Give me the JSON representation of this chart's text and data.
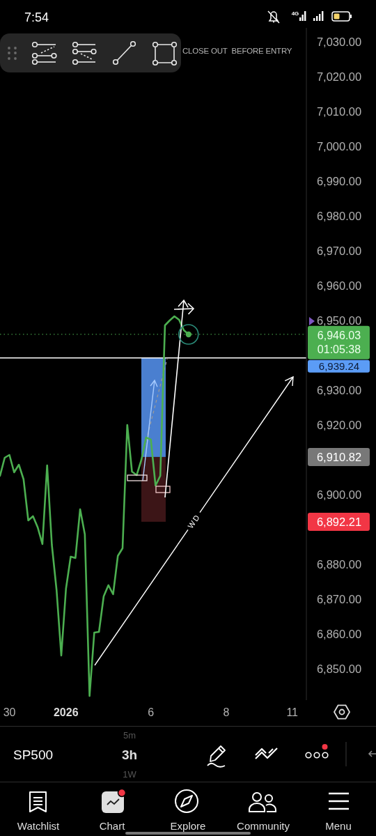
{
  "chart_data": {
    "type": "line",
    "title": "SP500",
    "categories": [
      null,
      null,
      "30",
      null,
      null,
      null,
      null,
      null,
      null,
      null,
      null,
      null,
      null,
      null,
      "2026",
      null,
      null,
      null,
      null,
      null,
      null,
      null,
      null,
      null,
      null,
      null,
      null,
      null,
      null,
      null,
      null,
      null,
      "6",
      null,
      null,
      null,
      null,
      null,
      null,
      null,
      null,
      null,
      null,
      null,
      null,
      null,
      null,
      null,
      "8",
      null,
      null,
      null,
      null,
      null,
      null,
      null,
      null,
      null,
      null,
      null,
      null,
      null,
      "11",
      null,
      null,
      null
    ],
    "ylim": [
      6841,
      7034
    ],
    "yticks": [
      {
        "value": 7030,
        "label": "7,030.00"
      },
      {
        "value": 7020,
        "label": "7,020.00"
      },
      {
        "value": 7010,
        "label": "7,010.00"
      },
      {
        "value": 7000,
        "label": "7,000.00"
      },
      {
        "value": 6990,
        "label": "6,990.00"
      },
      {
        "value": 6980,
        "label": "6,980.00"
      },
      {
        "value": 6970,
        "label": "6,970.00"
      },
      {
        "value": 6960,
        "label": "6,960.00"
      },
      {
        "value": 6950,
        "label": "6,950.00"
      },
      {
        "value": 6930,
        "label": "6,930.00"
      },
      {
        "value": 6920,
        "label": "6,920.00"
      },
      {
        "value": 6900,
        "label": "6,900.00"
      },
      {
        "value": 6880,
        "label": "6,880.00"
      },
      {
        "value": 6870,
        "label": "6,870.00"
      },
      {
        "value": 6860,
        "label": "6,860.00"
      },
      {
        "value": 6850,
        "label": "6,850.00"
      }
    ],
    "series": [
      {
        "color": "#4caf50",
        "values": [
          6905.4,
          6910.6,
          6911.4,
          6906.4,
          6908.6,
          6904.4,
          6892.6,
          6893.8,
          6890.6,
          6885.8,
          6908.4,
          6885.6,
          6872.6,
          6853.8,
          6873.0,
          6882.2,
          6881.8,
          6895.8,
          6888.6,
          6842.2,
          6860.4,
          6860.6,
          6870.8,
          6874.0,
          6871.4,
          6882.4,
          6884.6,
          6920.0,
          6906.6,
          6905.6,
          6910.0,
          6916.4,
          6915.8,
          6902.6,
          6905.4,
          6948.6,
          6950.0,
          6951.2,
          6950.2,
          6947.2,
          6946.0,
          null,
          null,
          null,
          null,
          null,
          null,
          null,
          null,
          null,
          null,
          null,
          null,
          null,
          null,
          null,
          null,
          null,
          null,
          null,
          null,
          null,
          null,
          null,
          null,
          null
        ]
      }
    ],
    "bands": [
      {
        "axis": "y",
        "from": 6892.21,
        "to": 6910.82,
        "color": "#3c1517"
      },
      {
        "axis": "y",
        "from": 6910.82,
        "to": 6939.24,
        "color": "#4a7fd0"
      }
    ],
    "ref_lines": [
      {
        "axis": "y",
        "value": 6946.03,
        "label": "6,946.03",
        "color": "#4caf50",
        "line_style": "dotted"
      },
      {
        "axis": "y",
        "value": 6939.24,
        "label": "6,939.24",
        "color": "#ffffff"
      }
    ],
    "annotations": [
      "CLOSE OUT  BEFORE ENTRY",
      "WD",
      "01:05:38",
      "6,910.82",
      "6,892.21",
      "7:54",
      "4G",
      "5m",
      "3h",
      "1W",
      "Watchlist",
      "Chart",
      "Explore",
      "Community",
      "Menu"
    ]
  }
}
